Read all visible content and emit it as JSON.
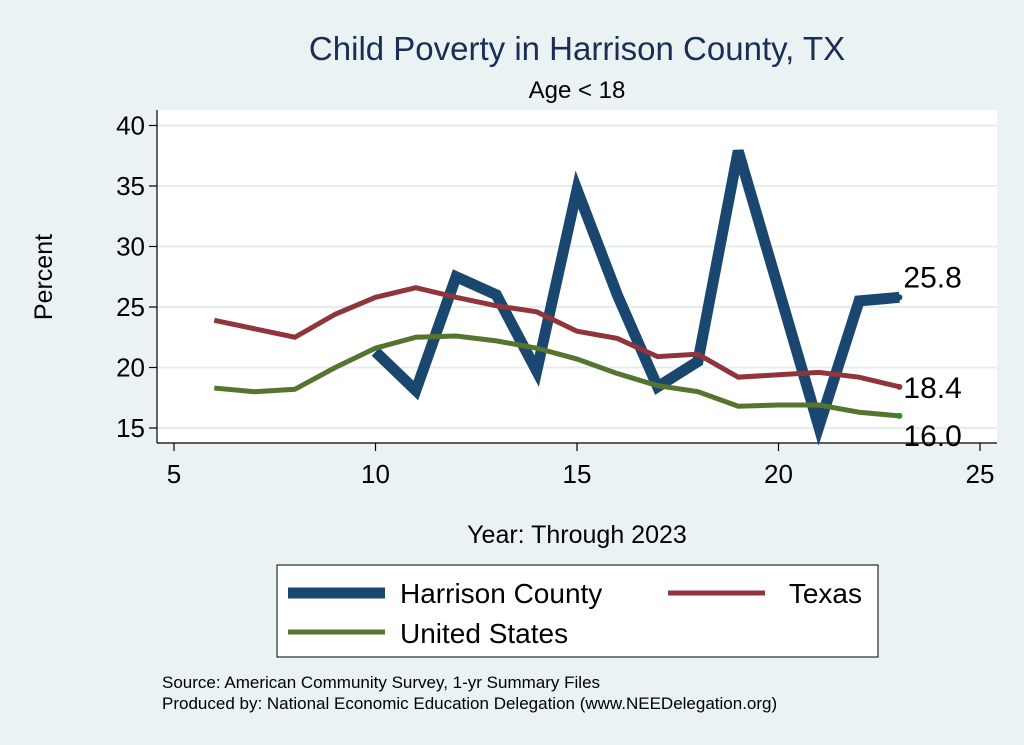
{
  "chart_data": {
    "type": "line",
    "title": "Child Poverty in Harrison County, TX",
    "subtitle": "Age < 18",
    "xlabel": "Year: Through 2023",
    "ylabel": "Percent",
    "xlim": [
      5,
      25
    ],
    "ylim": [
      14.5,
      41
    ],
    "xticks": [
      5,
      10,
      15,
      20,
      25
    ],
    "yticks": [
      15,
      20,
      25,
      30,
      35,
      40
    ],
    "grid": true,
    "series": [
      {
        "name": "Harrison County",
        "color": "#1a476f",
        "x": [
          10,
          11,
          12,
          13,
          14,
          15,
          16,
          17,
          18,
          19,
          20,
          21,
          22,
          23
        ],
        "values": [
          21.3,
          18.1,
          27.5,
          26.0,
          19.7,
          34.7,
          26.0,
          18.4,
          20.5,
          37.9,
          26.5,
          15.1,
          25.5,
          25.8
        ],
        "end_label": "25.8"
      },
      {
        "name": "Texas",
        "color": "#90353b",
        "x": [
          6,
          7,
          8,
          9,
          10,
          11,
          12,
          13,
          14,
          15,
          16,
          17,
          18,
          19,
          20,
          21,
          22,
          23
        ],
        "values": [
          23.9,
          23.2,
          22.5,
          24.4,
          25.8,
          26.6,
          25.8,
          25.1,
          24.6,
          23.0,
          22.4,
          20.9,
          21.1,
          19.2,
          19.4,
          19.6,
          19.2,
          18.4
        ],
        "end_label": "18.4"
      },
      {
        "name": "United States",
        "color": "#55752f",
        "x": [
          6,
          7,
          8,
          9,
          10,
          11,
          12,
          13,
          14,
          15,
          16,
          17,
          18,
          19,
          20,
          21,
          22,
          23
        ],
        "values": [
          18.3,
          18.0,
          18.2,
          20.0,
          21.6,
          22.5,
          22.6,
          22.2,
          21.6,
          20.7,
          19.5,
          18.5,
          18.0,
          16.8,
          16.9,
          16.9,
          16.3,
          16.0
        ],
        "end_label": "16.0"
      }
    ],
    "legend_position": "bottom",
    "source_lines": [
      "Source: American Community Survey, 1-yr Summary Files",
      "Produced by: National Economic Education Delegation (www.NEEDelegation.org)"
    ]
  }
}
